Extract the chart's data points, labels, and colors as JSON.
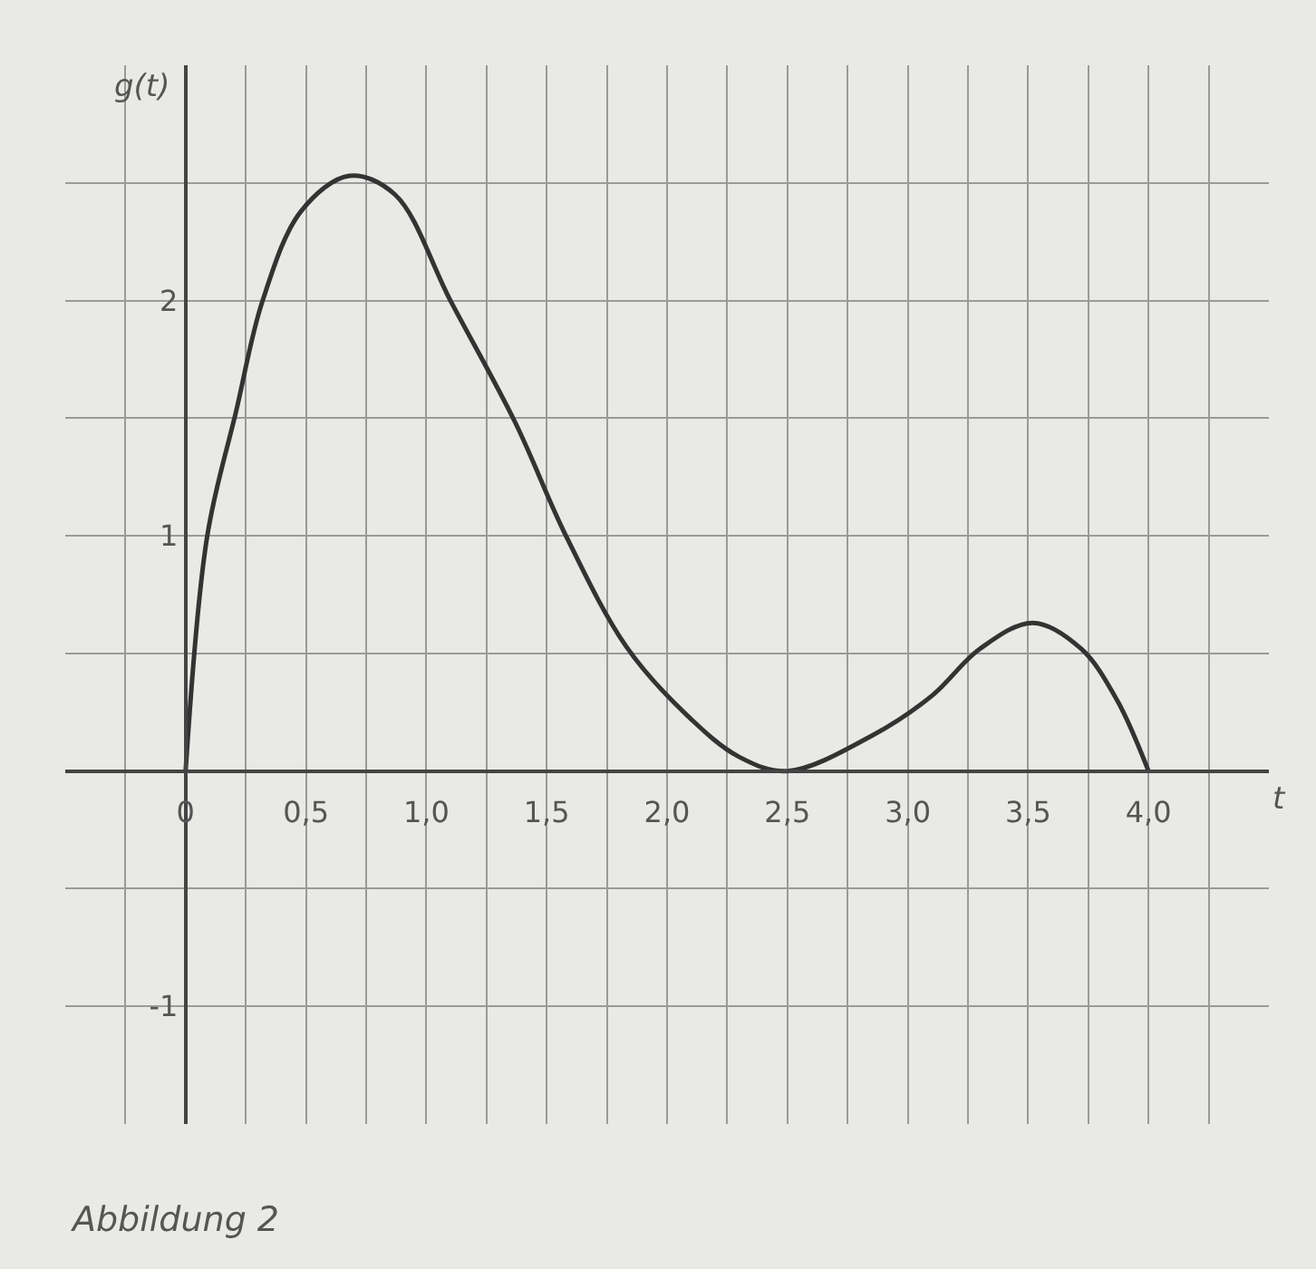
{
  "chart_data": {
    "type": "line",
    "xlabel": "t",
    "ylabel": "g(t)",
    "annotations": [
      "Abbildung 2"
    ],
    "x": [
      0,
      0.09,
      0.21,
      0.32,
      0.48,
      0.68,
      0.87,
      1.1,
      1.37,
      1.58,
      1.83,
      2.08,
      2.3,
      2.5,
      2.85,
      3.1,
      3.3,
      3.52,
      3.72,
      3.87,
      4.0
    ],
    "values": [
      0,
      1.0,
      1.53,
      2.0,
      2.38,
      2.53,
      2.45,
      2.0,
      1.48,
      1.0,
      0.53,
      0.24,
      0.06,
      0,
      0.15,
      0.32,
      0.52,
      0.63,
      0.52,
      0.3,
      0
    ],
    "color": "#333333",
    "line_style": "solid",
    "marker": "none",
    "xlim": [
      -0.5,
      4.5
    ],
    "ylim": [
      -1.5,
      3
    ],
    "xticks": [
      {
        "value": -0.25,
        "label": null
      },
      {
        "value": 0,
        "label": "0"
      },
      {
        "value": 0.25,
        "label": null
      },
      {
        "value": 0.5,
        "label": "0,5"
      },
      {
        "value": 0.75,
        "label": null
      },
      {
        "value": 1,
        "label": "1,0"
      },
      {
        "value": 1.25,
        "label": null
      },
      {
        "value": 1.5,
        "label": "1,5"
      },
      {
        "value": 1.75,
        "label": null
      },
      {
        "value": 2,
        "label": "2,0"
      },
      {
        "value": 2.25,
        "label": null
      },
      {
        "value": 2.5,
        "label": "2,5"
      },
      {
        "value": 2.75,
        "label": null
      },
      {
        "value": 3,
        "label": "3,0"
      },
      {
        "value": 3.25,
        "label": null
      },
      {
        "value": 3.5,
        "label": "3,5"
      },
      {
        "value": 3.75,
        "label": null
      },
      {
        "value": 4,
        "label": "4,0"
      },
      {
        "value": 4.25,
        "label": null
      }
    ],
    "yticks": [
      -1,
      {
        "value": -0.5,
        "label": null
      },
      {
        "value": 0,
        "label": null
      },
      {
        "value": 0.5,
        "label": null
      },
      1,
      {
        "value": 1.5,
        "label": null
      },
      2,
      {
        "value": 2.5,
        "label": null
      }
    ],
    "grid": true,
    "legend": false
  }
}
